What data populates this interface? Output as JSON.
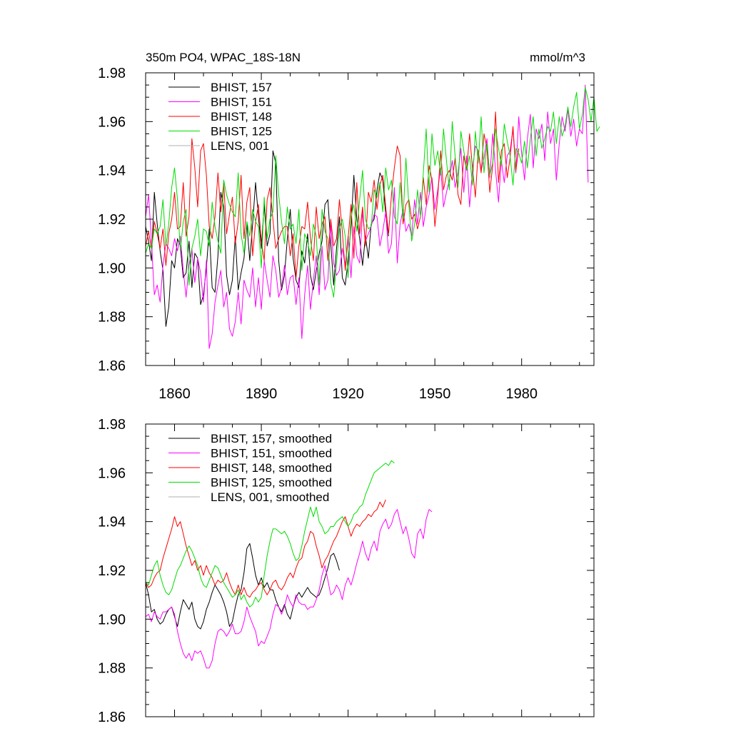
{
  "colors": {
    "s157": "#000000",
    "s151": "#ff00ff",
    "s148": "#ff0000",
    "s125": "#00dd00",
    "lens": "#b0b0b0"
  },
  "chart_data": [
    {
      "type": "line",
      "title": "350m PO4, WPAC_18S-18N",
      "units": "mmol/m^3",
      "xlim": [
        1850,
        2005
      ],
      "ylim": [
        1.86,
        1.98
      ],
      "yticks": [
        "1.86",
        "1.88",
        "1.90",
        "1.92",
        "1.94",
        "1.96",
        "1.98"
      ],
      "xticks": [
        "1860",
        "1890",
        "1920",
        "1950",
        "1980"
      ],
      "legend": "top-left",
      "series": [
        {
          "name": "BHIST, 157",
          "color_key": "s157",
          "start": 1850,
          "values": [
            1.917,
            1.911,
            1.903,
            1.931,
            1.918,
            1.907,
            1.899,
            1.876,
            1.884,
            1.903,
            1.9,
            1.912,
            1.909,
            1.896,
            1.898,
            1.911,
            1.892,
            1.906,
            1.904,
            1.885,
            1.889,
            1.9,
            1.916,
            1.892,
            1.89,
            1.905,
            1.931,
            1.925,
            1.897,
            1.889,
            1.895,
            1.913,
            1.891,
            1.898,
            1.904,
            1.918,
            1.903,
            1.918,
            1.935,
            1.921,
            1.908,
            1.926,
            1.909,
            1.914,
            1.948,
            1.943,
            1.903,
            1.891,
            1.897,
            1.912,
            1.924,
            1.904,
            1.895,
            1.892,
            1.907,
            1.902,
            1.914,
            1.897,
            1.891,
            1.899,
            1.906,
            1.911,
            1.926,
            1.928,
            1.91,
            1.893,
            1.908,
            1.921,
            1.896,
            1.893,
            1.903,
            1.917,
            1.938,
            1.92,
            1.912,
            1.901,
            1.913,
            1.904,
            1.918,
            1.92,
            1.932,
            1.939,
            1.936,
            1.922,
            1.913
          ]
        },
        {
          "name": "BHIST, 151",
          "color_key": "s151",
          "start": 1850,
          "values": [
            1.921,
            1.93,
            1.911,
            1.889,
            1.893,
            1.886,
            1.901,
            1.91,
            1.908,
            1.905,
            1.912,
            1.907,
            1.913,
            1.899,
            1.888,
            1.901,
            1.908,
            1.894,
            1.904,
            1.898,
            1.886,
            1.903,
            1.867,
            1.873,
            1.886,
            1.893,
            1.899,
            1.884,
            1.89,
            1.875,
            1.872,
            1.878,
            1.89,
            1.877,
            1.895,
            1.891,
            1.888,
            1.9,
            1.884,
            1.896,
            1.883,
            1.903,
            1.895,
            1.888,
            1.905,
            1.899,
            1.888,
            1.892,
            1.901,
            1.889,
            1.896,
            1.897,
            1.885,
            1.896,
            1.871,
            1.889,
            1.901,
            1.883,
            1.895,
            1.905,
            1.889,
            1.909,
            1.891,
            1.895,
            1.918,
            1.902,
            1.897,
            1.899,
            1.908,
            1.901,
            1.913,
            1.896,
            1.917,
            1.905,
            1.902,
            1.923,
            1.911,
            1.914,
            1.917,
            1.922,
            1.921,
            1.909,
            1.915,
            1.923,
            1.906,
            1.91,
            1.933,
            1.902,
            1.918,
            1.924,
            1.915,
            1.918,
            1.913,
            1.928,
            1.918,
            1.931,
            1.917,
            1.925,
            1.93,
            1.937,
            1.924,
            1.932,
            1.941,
            1.925,
            1.931,
            1.936,
            1.944,
            1.933,
            1.939,
            1.949,
            1.931,
            1.946,
            1.925,
            1.94,
            1.95,
            1.948,
            1.94,
            1.945,
            1.953,
            1.937,
            1.955,
            1.94,
            1.927,
            1.944,
            1.935,
            1.946,
            1.948,
            1.957,
            1.939,
            1.962,
            1.947,
            1.936,
            1.953,
            1.963,
            1.941,
            1.957,
            1.953,
            1.959,
            1.944,
            1.964,
            1.951,
            1.957,
            1.936,
            1.951,
            1.962,
            1.956,
            1.965,
            1.954,
            1.961,
            1.95,
            1.957,
            1.955,
            1.975,
            1.935
          ]
        },
        {
          "name": "BHIST, 148",
          "color_key": "s148",
          "start": 1850,
          "values": [
            1.909,
            1.915,
            1.908,
            1.919,
            1.914,
            1.908,
            1.916,
            1.901,
            1.914,
            1.92,
            1.931,
            1.916,
            1.917,
            1.935,
            1.913,
            1.921,
            1.953,
            1.941,
            1.925,
            1.948,
            1.951,
            1.938,
            1.917,
            1.912,
            1.921,
            1.939,
            1.923,
            1.935,
            1.914,
            1.922,
            1.929,
            1.91,
            1.919,
            1.938,
            1.912,
            1.927,
            1.933,
            1.905,
            1.919,
            1.926,
            1.911,
            1.903,
            1.928,
            1.933,
            1.92,
            1.908,
            1.912,
            1.915,
            1.917,
            1.917,
            1.905,
            1.914,
            1.896,
            1.909,
            1.917,
            1.916,
            1.927,
            1.912,
            1.903,
            1.925,
            1.912,
            1.918,
            1.921,
            1.903,
            1.92,
            1.909,
            1.912,
            1.928,
            1.915,
            1.899,
            1.912,
            1.926,
            1.904,
            1.935,
            1.914,
            1.925,
            1.909,
            1.931,
            1.927,
            1.936,
            1.924,
            1.934,
            1.938,
            1.925,
            1.914,
            1.93,
            1.941,
            1.95,
            1.946,
            1.918,
            1.926,
            1.928,
            1.92,
            1.922,
            1.916,
            1.921,
            1.937,
            1.926,
            1.942,
            1.936,
            1.917,
            1.929,
            1.948,
            1.932,
            1.938,
            1.94,
            1.936,
            1.945,
            1.93,
            1.926,
            1.946,
            1.94,
            1.955,
            1.941,
            1.929,
            1.948,
            1.939,
            1.955,
            1.949,
            1.931,
            1.942,
            1.964,
            1.935,
            1.948,
            1.951,
            1.937,
            1.945,
            1.958,
            1.94,
            1.949
          ]
        },
        {
          "name": "BHIST, 125",
          "color_key": "s125",
          "start": 1850,
          "values": [
            1.906,
            1.91,
            1.908,
            1.916,
            1.914,
            1.917,
            1.928,
            1.909,
            1.918,
            1.933,
            1.941,
            1.928,
            1.907,
            1.919,
            1.924,
            1.893,
            1.908,
            1.913,
            1.92,
            1.905,
            1.916,
            1.915,
            1.909,
            1.927,
            1.917,
            1.911,
            1.906,
            1.936,
            1.93,
            1.926,
            1.923,
            1.921,
            1.939,
            1.914,
            1.906,
            1.919,
            1.913,
            1.924,
            1.919,
            1.917,
            1.9,
            1.929,
            1.912,
            1.92,
            1.923,
            1.946,
            1.93,
            1.919,
            1.91,
            1.925,
            1.916,
            1.918,
            1.91,
            1.924,
            1.899,
            1.914,
            1.911,
            1.905,
            1.918,
            1.913,
            1.893,
            1.924,
            1.915,
            1.912,
            1.894,
            1.888,
            1.902,
            1.916,
            1.92,
            1.913,
            1.896,
            1.921,
            1.926,
            1.915,
            1.928,
            1.94,
            1.92,
            1.916,
            1.917,
            1.932,
            1.929,
            1.935,
            1.923,
            1.941,
            1.932,
            1.936,
            1.921,
            1.918,
            1.935,
            1.92,
            1.945,
            1.926,
            1.911,
            1.918,
            1.932,
            1.921,
            1.939,
            1.957,
            1.931,
            1.955,
            1.942,
            1.948,
            1.938,
            1.957,
            1.944,
            1.932,
            1.96,
            1.946,
            1.933,
            1.956,
            1.948,
            1.94,
            1.946,
            1.934,
            1.956,
            1.943,
            1.962,
            1.939,
            1.951,
            1.938,
            1.943,
            1.957,
            1.949,
            1.942,
            1.959,
            1.952,
            1.946,
            1.934,
            1.949,
            1.947,
            1.943,
            1.952,
            1.941,
            1.953,
            1.962,
            1.946,
            1.957,
            1.949,
            1.953,
            1.958,
            1.956,
            1.964,
            1.951,
            1.962,
            1.954,
            1.958,
            1.966,
            1.958,
            1.966,
            1.972,
            1.957,
            1.963,
            1.974,
            1.969,
            1.96,
            1.97,
            1.956,
            1.958
          ]
        },
        {
          "name": "LENS, 001",
          "color_key": "lens",
          "start": 1850,
          "values": []
        }
      ]
    },
    {
      "type": "line",
      "title": "",
      "units": "",
      "xlim": [
        1850,
        2005
      ],
      "ylim": [
        1.86,
        1.98
      ],
      "yticks": [
        "1.86",
        "1.88",
        "1.90",
        "1.92",
        "1.94",
        "1.96",
        "1.98"
      ],
      "xticks": [],
      "legend": "top-left",
      "series": [
        {
          "name": "BHIST, 157, smoothed",
          "color_key": "s157",
          "start": 1850,
          "values": [
            1.915,
            1.91,
            1.903,
            1.904,
            1.9,
            1.898,
            1.899,
            1.902,
            1.904,
            1.905,
            1.901,
            1.897,
            1.903,
            1.908,
            1.906,
            1.904,
            1.907,
            1.9,
            1.897,
            1.896,
            1.899,
            1.904,
            1.907,
            1.911,
            1.914,
            1.912,
            1.91,
            1.907,
            1.903,
            1.897,
            1.899,
            1.905,
            1.91,
            1.912,
            1.919,
            1.929,
            1.931,
            1.925,
            1.918,
            1.914,
            1.917,
            1.913,
            1.915,
            1.912,
            1.912,
            1.908,
            1.905,
            1.903,
            1.906,
            1.902,
            1.9,
            1.905,
            1.909,
            1.911,
            1.909,
            1.911,
            1.913,
            1.911,
            1.91,
            1.909,
            1.91,
            1.913,
            1.917,
            1.921,
            1.926,
            1.927,
            1.924,
            1.92
          ]
        },
        {
          "name": "BHIST, 151, smoothed",
          "color_key": "s151",
          "start": 1850,
          "values": [
            1.901,
            1.902,
            1.899,
            1.903,
            1.901,
            1.9,
            1.903,
            1.903,
            1.904,
            1.905,
            1.902,
            1.895,
            1.89,
            1.886,
            1.884,
            1.886,
            1.883,
            1.887,
            1.886,
            1.887,
            1.884,
            1.88,
            1.88,
            1.883,
            1.89,
            1.895,
            1.896,
            1.895,
            1.893,
            1.895,
            1.898,
            1.894,
            1.894,
            1.895,
            1.899,
            1.905,
            1.901,
            1.898,
            1.895,
            1.889,
            1.891,
            1.89,
            1.893,
            1.896,
            1.902,
            1.906,
            1.905,
            1.902,
            1.905,
            1.91,
            1.907,
            1.905,
            1.91,
            1.907,
            1.906,
            1.906,
            1.904,
            1.905,
            1.905,
            1.908,
            1.912,
            1.918,
            1.922,
            1.916,
            1.91,
            1.911,
            1.914,
            1.912,
            1.908,
            1.914,
            1.917,
            1.914,
            1.918,
            1.923,
            1.927,
            1.932,
            1.927,
            1.924,
            1.929,
            1.932,
            1.928,
            1.936,
            1.939,
            1.941,
            1.937,
            1.939,
            1.943,
            1.945,
            1.94,
            1.935,
            1.938,
            1.933,
            1.927,
            1.925,
            1.935,
            1.937,
            1.933,
            1.941,
            1.945,
            1.944
          ]
        },
        {
          "name": "BHIST, 148, smoothed",
          "color_key": "s148",
          "start": 1850,
          "values": [
            1.915,
            1.913,
            1.914,
            1.917,
            1.919,
            1.92,
            1.925,
            1.929,
            1.933,
            1.937,
            1.942,
            1.938,
            1.94,
            1.935,
            1.93,
            1.926,
            1.922,
            1.924,
            1.92,
            1.922,
            1.918,
            1.922,
            1.919,
            1.917,
            1.914,
            1.916,
            1.915,
            1.916,
            1.919,
            1.915,
            1.912,
            1.91,
            1.914,
            1.91,
            1.913,
            1.91,
            1.909,
            1.911,
            1.912,
            1.914,
            1.915,
            1.912,
            1.91,
            1.912,
            1.915,
            1.916,
            1.913,
            1.912,
            1.914,
            1.917,
            1.919,
            1.917,
            1.921,
            1.924,
            1.925,
            1.93,
            1.932,
            1.936,
            1.935,
            1.93,
            1.926,
            1.921,
            1.924,
            1.926,
            1.929,
            1.932,
            1.934,
            1.937,
            1.94,
            1.942,
            1.938,
            1.934,
            1.937,
            1.939,
            1.938,
            1.94,
            1.941,
            1.943,
            1.942,
            1.944,
            1.945,
            1.948,
            1.946,
            1.949
          ]
        },
        {
          "name": "BHIST, 125, smoothed",
          "color_key": "s125",
          "start": 1850,
          "values": [
            1.915,
            1.914,
            1.918,
            1.922,
            1.924,
            1.918,
            1.914,
            1.911,
            1.91,
            1.912,
            1.916,
            1.92,
            1.922,
            1.925,
            1.928,
            1.93,
            1.928,
            1.925,
            1.922,
            1.917,
            1.914,
            1.913,
            1.916,
            1.919,
            1.922,
            1.921,
            1.918,
            1.915,
            1.913,
            1.911,
            1.909,
            1.91,
            1.912,
            1.908,
            1.91,
            1.907,
            1.905,
            1.906,
            1.909,
            1.907,
            1.909,
            1.918,
            1.926,
            1.932,
            1.937,
            1.937,
            1.936,
            1.935,
            1.936,
            1.934,
            1.931,
            1.927,
            1.924,
            1.925,
            1.93,
            1.936,
            1.941,
            1.946,
            1.942,
            1.946,
            1.94,
            1.938,
            1.935,
            1.936,
            1.938,
            1.938,
            1.94,
            1.941,
            1.942,
            1.94,
            1.938,
            1.94,
            1.943,
            1.944,
            1.946,
            1.947,
            1.951,
            1.954,
            1.957,
            1.96,
            1.961,
            1.962,
            1.963,
            1.964,
            1.963,
            1.965,
            1.964
          ]
        },
        {
          "name": "LENS, 001, smoothed",
          "color_key": "lens",
          "start": 1850,
          "values": []
        }
      ]
    }
  ]
}
